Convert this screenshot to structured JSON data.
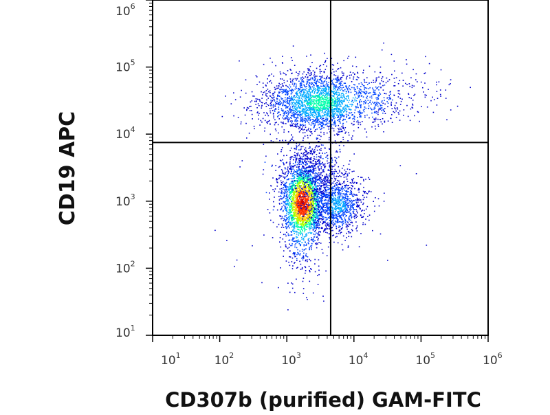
{
  "chart_data": {
    "type": "scatter",
    "subtype": "flow-cytometry-density-dot-plot",
    "title": "",
    "xlabel": "CD307b (purified) GAM-FITC",
    "ylabel": "CD19 APC",
    "x_scale": "log",
    "y_scale": "log",
    "xlim": [
      10,
      1000000
    ],
    "ylim": [
      10,
      1000000
    ],
    "x_ticks": [
      {
        "value": 10,
        "base": "10",
        "exp": "1"
      },
      {
        "value": 100,
        "base": "10",
        "exp": "2"
      },
      {
        "value": 1000,
        "base": "10",
        "exp": "3"
      },
      {
        "value": 10000,
        "base": "10",
        "exp": "4"
      },
      {
        "value": 100000,
        "base": "10",
        "exp": "5"
      },
      {
        "value": 1000000,
        "base": "10",
        "exp": "6"
      }
    ],
    "y_ticks": [
      {
        "value": 10,
        "base": "10",
        "exp": "1"
      },
      {
        "value": 100,
        "base": "10",
        "exp": "2"
      },
      {
        "value": 1000,
        "base": "10",
        "exp": "3"
      },
      {
        "value": 10000,
        "base": "10",
        "exp": "4"
      },
      {
        "value": 100000,
        "base": "10",
        "exp": "5"
      },
      {
        "value": 1000000,
        "base": "10",
        "exp": "6"
      }
    ],
    "quadrant_gates": {
      "x": 4500,
      "y": 7500
    },
    "grid": false,
    "legend": "none",
    "density_colors": [
      "#0000cc",
      "#0044ff",
      "#00aaff",
      "#00ffaa",
      "#aaff00",
      "#ffcc00",
      "#ff3300",
      "#cc0000"
    ],
    "populations": [
      {
        "center_x": 1700,
        "center_y": 950,
        "relative_density": 1.0,
        "note": "CD19-low, CD307b-low"
      },
      {
        "center_x": 3200,
        "center_y": 30000,
        "relative_density": 0.35,
        "note": "CD19-high population"
      },
      {
        "center_x": 5500,
        "center_y": 900,
        "relative_density": 0.25,
        "note": "CD19-low, CD307b-high"
      }
    ]
  }
}
